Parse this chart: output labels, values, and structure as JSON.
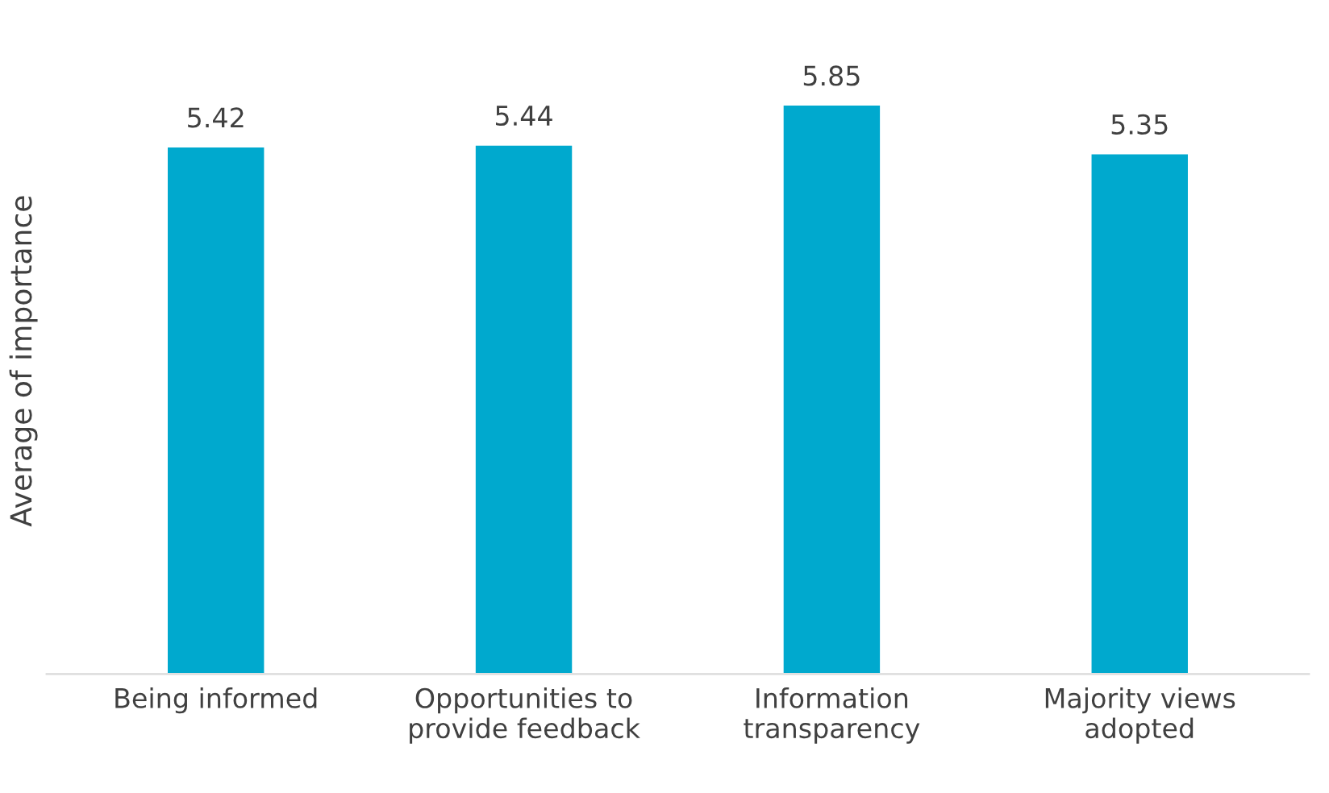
{
  "chart_data": {
    "type": "bar",
    "ylabel": "Average of importance",
    "categories": [
      "Being informed",
      "Opportunities to\nprovide feedback",
      "Information\ntransparency",
      "Majority views\nadopted"
    ],
    "values": [
      5.42,
      5.44,
      5.85,
      5.35
    ],
    "color": "#00a9ce",
    "data_labels": true,
    "grid": false,
    "legend": false
  }
}
